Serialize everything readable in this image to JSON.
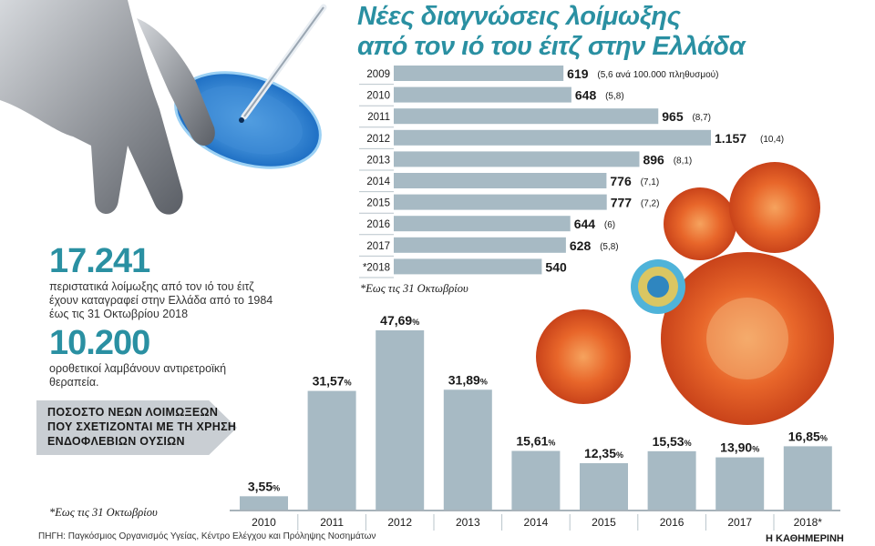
{
  "title": {
    "line1": "Νέες διαγνώσεις λοίμωξης",
    "line2": "από τον ιό του έιτζ στην Ελλάδα"
  },
  "stats": [
    {
      "number": "17.241",
      "text1": "περιστατικά λοίμωξης από τον ιό του έιτζ",
      "text2": "έχουν καταγραφεί στην Ελλάδα από το 1984",
      "text3": "έως τις 31 Οκτωβρίου 2018"
    },
    {
      "number": "10.200",
      "text1": "οροθετικοί λαμβάνουν αντιρετροϊκή",
      "text2": "θεραπεία."
    }
  ],
  "banner": {
    "line1": "ΠΟΣΟΣΤΟ ΝΕΩΝ ΛΟΙΜΩΞΕΩΝ",
    "line2": "ΠΟΥ ΣΧΕΤΙΖΟΝΤΑΙ ΜΕ ΤΗ ΧΡΗΣΗ",
    "line3": "ΕΝΔΟΦΛΕΒΙΩΝ ΟΥΣΙΩΝ"
  },
  "footnote_top": "*Εως τις 31 Οκτωβρίου",
  "footnote_bottom": "*Εως τις 31 Οκτωβρίου",
  "source": "ΠΗΓΗ: Παγκόσμιος Οργανισμός Υγείας, Κέντρο Ελέγχου και Πρόληψης Νοσημάτων",
  "brand": "Η ΚΑΘΗΜΕΡΙΝΗ",
  "colors": {
    "bar": "#a7bac4",
    "accent": "#2a90a2",
    "text": "#1a1a1a"
  },
  "chart_data": [
    {
      "type": "bar",
      "orientation": "horizontal",
      "title": "Νέες διαγνώσεις λοίμωξης από τον ιό του έιτζ στην Ελλάδα",
      "categories": [
        "2009",
        "2010",
        "2011",
        "2012",
        "2013",
        "2014",
        "2015",
        "2016",
        "2017",
        "*2018"
      ],
      "values": [
        619,
        648,
        965,
        1157,
        896,
        776,
        777,
        644,
        628,
        540
      ],
      "value_labels": [
        "619",
        "648",
        "965",
        "1.157",
        "896",
        "776",
        "777",
        "644",
        "628",
        "540"
      ],
      "rate_labels": [
        "(5,6 ανά 100.000 πληθυσμού)",
        "(5,8)",
        "(8,7)",
        "(10,4)",
        "(8,1)",
        "(7,1)",
        "(7,2)",
        "(6)",
        "(5,8)",
        ""
      ],
      "xlim": [
        0,
        1157
      ]
    },
    {
      "type": "bar",
      "orientation": "vertical",
      "title": "ΠΟΣΟΣΤΟ ΝΕΩΝ ΛΟΙΜΩΞΕΩΝ ΠΟΥ ΣΧΕΤΙΖΟΝΤΑΙ ΜΕ ΤΗ ΧΡΗΣΗ ΕΝΔΟΦΛΕΒΙΩΝ ΟΥΣΙΩΝ",
      "categories": [
        "2010",
        "2011",
        "2012",
        "2013",
        "2014",
        "2015",
        "2016",
        "2017",
        "2018*"
      ],
      "values": [
        3.55,
        31.57,
        47.69,
        31.89,
        15.61,
        12.35,
        15.53,
        13.9,
        16.85
      ],
      "value_labels": [
        "3,55",
        "31,57",
        "47,69",
        "31,89",
        "15,61",
        "12,35",
        "15,53",
        "13,90",
        "16,85"
      ],
      "unit": "%",
      "ylim": [
        0,
        47.69
      ]
    }
  ]
}
